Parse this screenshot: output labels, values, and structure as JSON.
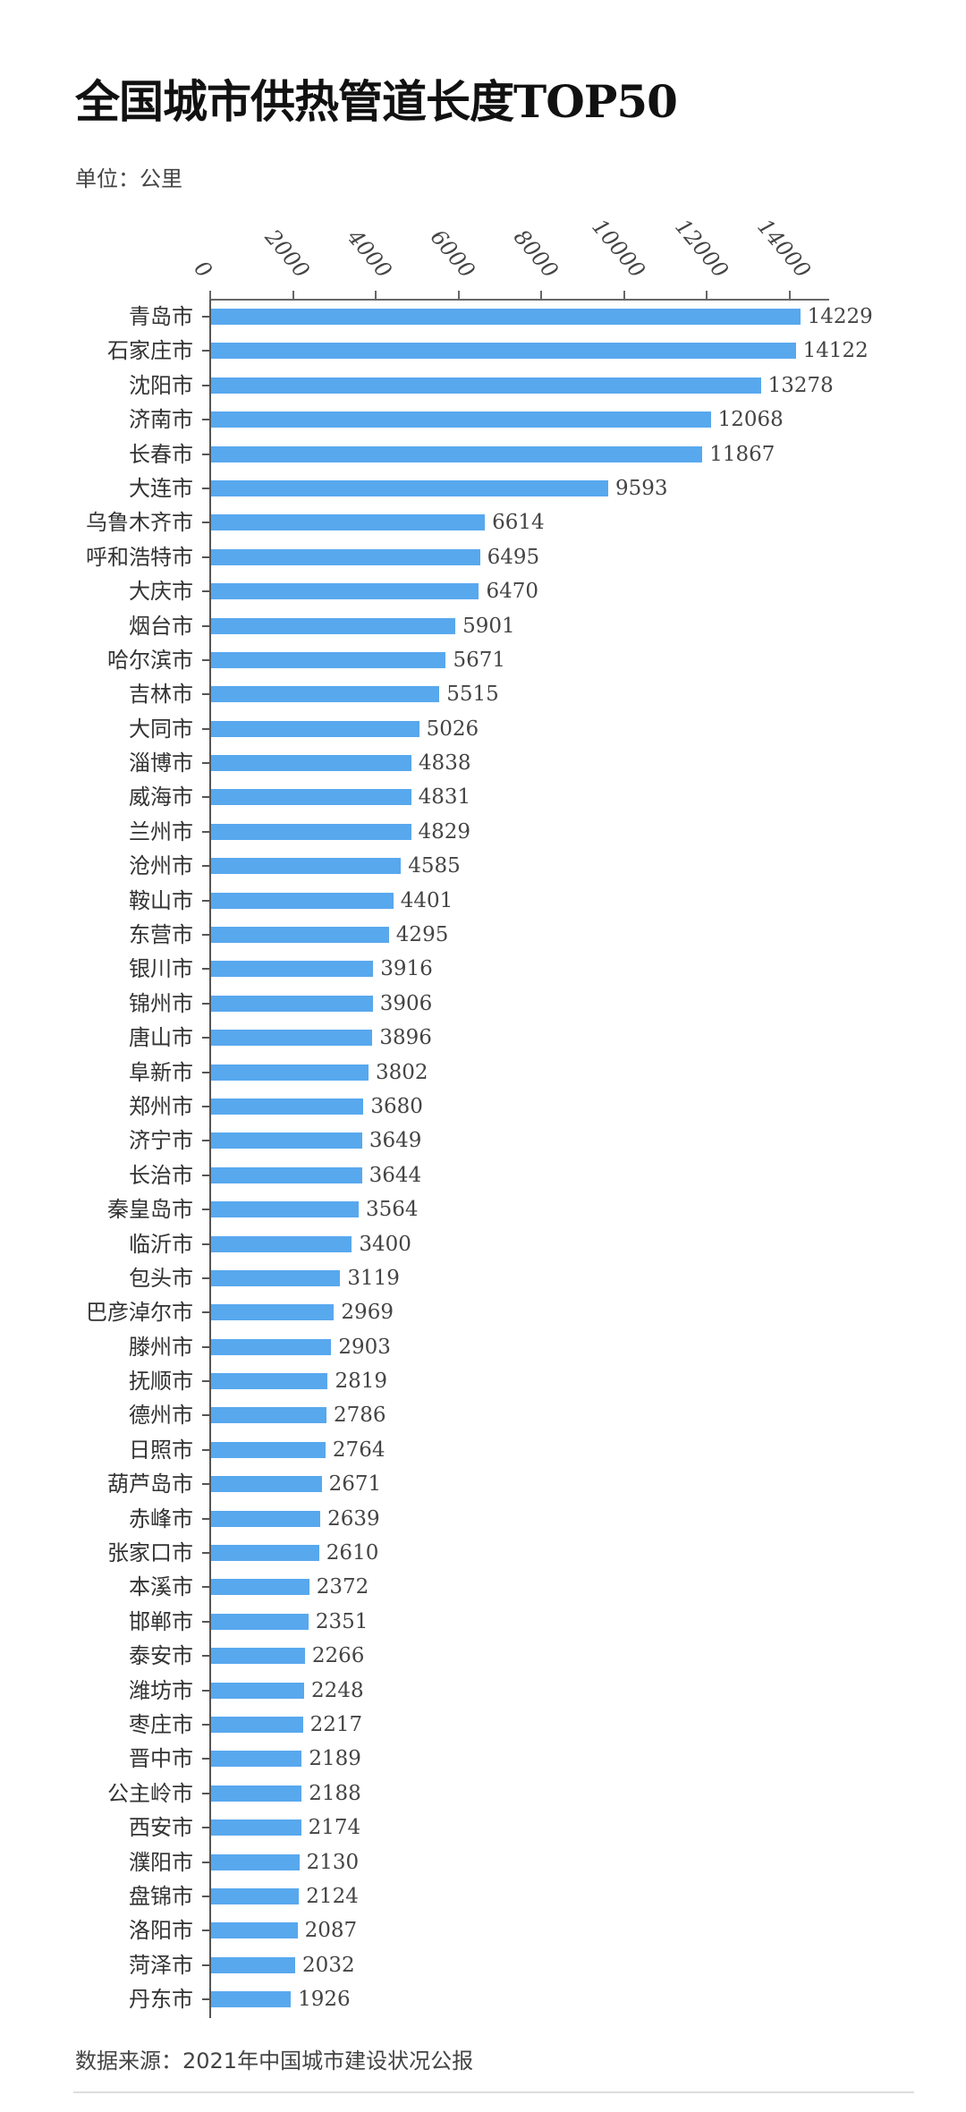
{
  "header": {
    "title": "全国城市供热管道长度TOP50",
    "unit": "单位：公里"
  },
  "footer": {
    "source": "数据来源：2021年中国城市建设状况公报"
  },
  "colors": {
    "bar": "#58a8ee",
    "axis": "#555555",
    "text": "#333333"
  },
  "chart_data": {
    "type": "bar",
    "orientation": "horizontal",
    "title": "全国城市供热管道长度TOP50",
    "subtitle": "单位：公里",
    "xlabel": "",
    "ylabel": "",
    "xlim": [
      0,
      15000
    ],
    "x_ticks": [
      0,
      2000,
      4000,
      6000,
      8000,
      10000,
      12000,
      14000
    ],
    "x_axis_position": "top",
    "grid": false,
    "legend": null,
    "data_labels": true,
    "source": "数据来源：2021年中国城市建设状况公报",
    "categories": [
      "青岛市",
      "石家庄市",
      "沈阳市",
      "济南市",
      "长春市",
      "大连市",
      "乌鲁木齐市",
      "呼和浩特市",
      "大庆市",
      "烟台市",
      "哈尔滨市",
      "吉林市",
      "大同市",
      "淄博市",
      "威海市",
      "兰州市",
      "沧州市",
      "鞍山市",
      "东营市",
      "银川市",
      "锦州市",
      "唐山市",
      "阜新市",
      "郑州市",
      "济宁市",
      "长治市",
      "秦皇岛市",
      "临沂市",
      "包头市",
      "巴彦淖尔市",
      "滕州市",
      "抚顺市",
      "德州市",
      "日照市",
      "葫芦岛市",
      "赤峰市",
      "张家口市",
      "本溪市",
      "邯郸市",
      "泰安市",
      "潍坊市",
      "枣庄市",
      "晋中市",
      "公主岭市",
      "西安市",
      "濮阳市",
      "盘锦市",
      "洛阳市",
      "菏泽市",
      "丹东市"
    ],
    "values": [
      14229,
      14122,
      13278,
      12068,
      11867,
      9593,
      6614,
      6495,
      6470,
      5901,
      5671,
      5515,
      5026,
      4838,
      4831,
      4829,
      4585,
      4401,
      4295,
      3916,
      3906,
      3896,
      3802,
      3680,
      3649,
      3644,
      3564,
      3400,
      3119,
      2969,
      2903,
      2819,
      2786,
      2764,
      2671,
      2639,
      2610,
      2372,
      2351,
      2266,
      2248,
      2217,
      2189,
      2188,
      2174,
      2130,
      2124,
      2087,
      2032,
      1926
    ]
  }
}
